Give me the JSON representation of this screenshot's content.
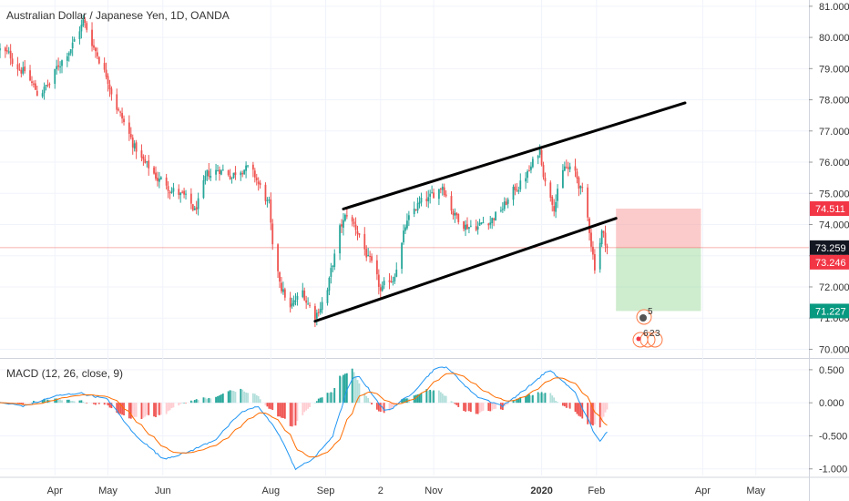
{
  "title": "Australian Dollar / Japanese Yen, 1D, OANDA",
  "macd_label": "MACD (12, 26, close, 9)",
  "colors": {
    "up": "#26a69a",
    "down": "#ef5350",
    "macd_line": "#2196f3",
    "signal_line": "#ff6d00",
    "trend": "#000000",
    "current_price_line": "#ef5350",
    "risk_zone": "#f7a1a1",
    "reward_zone": "#a5dca5",
    "badge_red": "#f23645",
    "badge_dark": "#131722",
    "badge_green": "#089981"
  },
  "chart_data": {
    "type": "candlestick",
    "price_axis": {
      "ylim": [
        69.75,
        81.2
      ],
      "ticks": [
        "81.000",
        "80.000",
        "79.000",
        "78.000",
        "77.000",
        "76.000",
        "75.000",
        "74.000",
        "73.000",
        "72.000",
        "71.000",
        "70.000"
      ]
    },
    "price_badges": [
      {
        "value": 74.511,
        "label": "74.511",
        "color": "red"
      },
      {
        "value": 73.259,
        "label": "73.259",
        "color": "dark"
      },
      {
        "value": 73.246,
        "label": "73.246",
        "color": "red"
      },
      {
        "value": 71.227,
        "label": "71.227",
        "color": "green"
      }
    ],
    "x_axis": {
      "range": [
        "2019-03-01",
        "2020-05-31"
      ],
      "ticks": [
        {
          "date": "2019-04-01",
          "label": "Apr"
        },
        {
          "date": "2019-05-01",
          "label": "May"
        },
        {
          "date": "2019-06-01",
          "label": "Jun"
        },
        {
          "date": "2019-08-01",
          "label": "Aug"
        },
        {
          "date": "2019-09-01",
          "label": "Sep"
        },
        {
          "date": "2019-10-02",
          "label": "2"
        },
        {
          "date": "2019-11-01",
          "label": "Nov"
        },
        {
          "date": "2020-01-01",
          "label": "2020"
        },
        {
          "date": "2020-02-01",
          "label": "Feb"
        },
        {
          "date": "2020-04-01",
          "label": "Apr"
        },
        {
          "date": "2020-05-01",
          "label": "May"
        }
      ]
    },
    "close_anchors": [
      [
        "2019-03-01",
        79.6
      ],
      [
        "2019-03-08",
        79.3
      ],
      [
        "2019-03-15",
        78.9
      ],
      [
        "2019-03-22",
        78.2
      ],
      [
        "2019-03-29",
        78.5
      ],
      [
        "2019-04-05",
        79.3
      ],
      [
        "2019-04-12",
        79.9
      ],
      [
        "2019-04-17",
        80.5
      ],
      [
        "2019-04-24",
        79.6
      ],
      [
        "2019-05-01",
        78.7
      ],
      [
        "2019-05-08",
        77.5
      ],
      [
        "2019-05-15",
        76.6
      ],
      [
        "2019-05-22",
        75.9
      ],
      [
        "2019-05-29",
        75.5
      ],
      [
        "2019-06-05",
        75.2
      ],
      [
        "2019-06-12",
        74.9
      ],
      [
        "2019-06-19",
        74.4
      ],
      [
        "2019-06-26",
        75.5
      ],
      [
        "2019-07-03",
        75.8
      ],
      [
        "2019-07-10",
        75.6
      ],
      [
        "2019-07-17",
        75.9
      ],
      [
        "2019-07-24",
        75.4
      ],
      [
        "2019-07-31",
        74.6
      ],
      [
        "2019-08-02",
        73.1
      ],
      [
        "2019-08-07",
        72.0
      ],
      [
        "2019-08-12",
        71.3
      ],
      [
        "2019-08-19",
        71.8
      ],
      [
        "2019-08-26",
        71.1
      ],
      [
        "2019-09-02",
        71.9
      ],
      [
        "2019-09-09",
        73.8
      ],
      [
        "2019-09-13",
        74.3
      ],
      [
        "2019-09-20",
        73.7
      ],
      [
        "2019-09-27",
        72.6
      ],
      [
        "2019-10-02",
        71.8
      ],
      [
        "2019-10-09",
        72.3
      ],
      [
        "2019-10-16",
        73.9
      ],
      [
        "2019-10-23",
        74.6
      ],
      [
        "2019-10-30",
        74.8
      ],
      [
        "2019-11-06",
        75.3
      ],
      [
        "2019-11-13",
        74.3
      ],
      [
        "2019-11-20",
        74.0
      ],
      [
        "2019-11-27",
        74.0
      ],
      [
        "2019-12-04",
        74.2
      ],
      [
        "2019-12-11",
        74.6
      ],
      [
        "2019-12-18",
        75.2
      ],
      [
        "2019-12-25",
        75.7
      ],
      [
        "2019-12-31",
        76.4
      ],
      [
        "2020-01-03",
        75.4
      ],
      [
        "2020-01-08",
        74.7
      ],
      [
        "2020-01-14",
        75.8
      ],
      [
        "2020-01-20",
        75.6
      ],
      [
        "2020-01-24",
        75.0
      ],
      [
        "2020-01-28",
        73.8
      ],
      [
        "2020-01-31",
        72.7
      ],
      [
        "2020-02-04",
        73.8
      ],
      [
        "2020-02-07",
        73.26
      ]
    ],
    "trend_lines": [
      {
        "from": [
          "2019-09-11",
          74.5
        ],
        "to": [
          "2020-03-22",
          77.9
        ]
      },
      {
        "from": [
          "2019-08-26",
          70.9
        ],
        "to": [
          "2020-02-12",
          74.2
        ]
      }
    ],
    "current_price": 73.259,
    "position": {
      "start": "2020-02-12",
      "end": "2020-03-31",
      "entry": 73.259,
      "stop": 74.511,
      "target": 71.227
    },
    "macd": {
      "ylim": [
        -1.1,
        0.65
      ],
      "ticks": [
        "0.500",
        "0.000",
        "-0.500",
        "-1.000"
      ],
      "anchors": [
        [
          "2019-03-01",
          0.0
        ],
        [
          "2019-03-15",
          -0.05
        ],
        [
          "2019-04-01",
          0.1
        ],
        [
          "2019-04-15",
          0.15
        ],
        [
          "2019-05-01",
          0.05
        ],
        [
          "2019-05-15",
          -0.45
        ],
        [
          "2019-06-01",
          -0.85
        ],
        [
          "2019-06-15",
          -0.75
        ],
        [
          "2019-07-01",
          -0.55
        ],
        [
          "2019-07-15",
          -0.15
        ],
        [
          "2019-07-25",
          -0.05
        ],
        [
          "2019-08-05",
          -0.45
        ],
        [
          "2019-08-15",
          -1.0
        ],
        [
          "2019-08-25",
          -0.85
        ],
        [
          "2019-09-05",
          -0.5
        ],
        [
          "2019-09-15",
          0.35
        ],
        [
          "2019-09-20",
          0.4
        ],
        [
          "2019-10-05",
          -0.15
        ],
        [
          "2019-10-20",
          0.15
        ],
        [
          "2019-11-01",
          0.5
        ],
        [
          "2019-11-08",
          0.55
        ],
        [
          "2019-11-25",
          0.1
        ],
        [
          "2019-12-10",
          -0.05
        ],
        [
          "2019-12-25",
          0.25
        ],
        [
          "2020-01-05",
          0.5
        ],
        [
          "2020-01-12",
          0.35
        ],
        [
          "2020-01-20",
          0.15
        ],
        [
          "2020-01-28",
          -0.3
        ],
        [
          "2020-02-02",
          -0.6
        ],
        [
          "2020-02-07",
          -0.45
        ]
      ]
    }
  }
}
